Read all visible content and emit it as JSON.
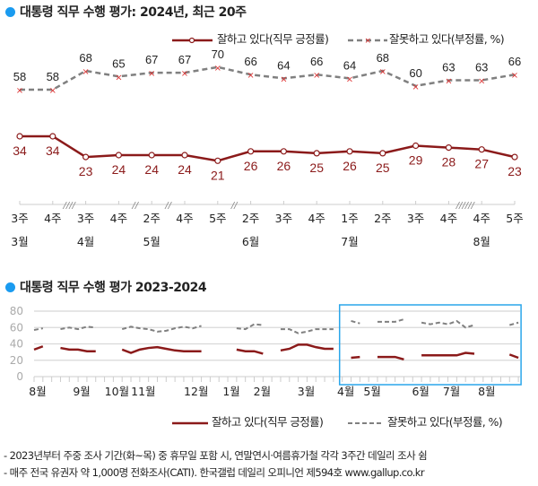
{
  "colors": {
    "positive": "#8b1a1a",
    "negative": "#808080",
    "accent": "#1a9bf0",
    "box": "#2aa6ea"
  },
  "chart_data": [
    {
      "type": "line",
      "title": "대통령 직무 수행 평가: 2024년, 최근 20주",
      "categories": [
        "3주",
        "4주",
        "3주",
        "4주",
        "2주",
        "4주",
        "5주",
        "2주",
        "3주",
        "4주",
        "1주",
        "2주",
        "3주",
        "4주",
        "4주",
        "5주"
      ],
      "months": [
        {
          "label": "3월",
          "at": 0
        },
        {
          "label": "4월",
          "at": 2
        },
        {
          "label": "5월",
          "at": 4
        },
        {
          "label": "6월",
          "at": 7
        },
        {
          "label": "7월",
          "at": 10
        },
        {
          "label": "8월",
          "at": 14
        }
      ],
      "breaks": [
        {
          "after": 1,
          "mark": "////"
        },
        {
          "after": 3,
          "mark": "//"
        },
        {
          "after": 4,
          "mark": "//"
        },
        {
          "after": 6,
          "mark": "//"
        },
        {
          "after": 13,
          "mark": "//////"
        }
      ],
      "series": [
        {
          "name": "잘하고 있다(직무 긍정률)",
          "style": "solid-circle",
          "values": [
            34,
            34,
            23,
            24,
            24,
            24,
            21,
            26,
            26,
            25,
            26,
            25,
            29,
            28,
            27,
            23
          ]
        },
        {
          "name": "잘못하고 있다(부정률, %)",
          "style": "dashed-x",
          "values": [
            58,
            58,
            68,
            65,
            67,
            67,
            70,
            66,
            64,
            66,
            64,
            68,
            60,
            63,
            63,
            66
          ]
        }
      ]
    },
    {
      "type": "line",
      "title": "대통령 직무 수행 평가 2023-2024",
      "ylim": [
        0,
        80
      ],
      "yticks": [
        0,
        20,
        40,
        60,
        80
      ],
      "grid": true,
      "months": [
        {
          "label": "8월",
          "week": 0
        },
        {
          "label": "9월",
          "week": 5
        },
        {
          "label": "10월",
          "week": 9
        },
        {
          "label": "11월",
          "week": 12
        },
        {
          "label": "12월",
          "week": 18
        },
        {
          "label": "1월",
          "week": 22
        },
        {
          "label": "2월",
          "week": 25.5
        },
        {
          "label": "3월",
          "week": 30.5
        },
        {
          "label": "4월",
          "week": 35
        },
        {
          "label": "5월",
          "week": 38
        },
        {
          "label": "6월",
          "week": 43.5
        },
        {
          "label": "7월",
          "week": 47
        },
        {
          "label": "8월",
          "week": 51
        }
      ],
      "highlight_weeks": [
        35,
        55
      ],
      "series": [
        {
          "name": "잘하고 있다(직무 긍정률)",
          "segments": [
            {
              "start": 0,
              "values": [
                33,
                37
              ]
            },
            {
              "start": 3,
              "values": [
                35,
                33,
                33,
                31,
                31
              ]
            },
            {
              "start": 10,
              "values": [
                33,
                29,
                33,
                35,
                36,
                34,
                32,
                31,
                31,
                31
              ]
            },
            {
              "start": 23,
              "values": [
                33,
                31,
                31,
                28
              ]
            },
            {
              "start": 28,
              "values": [
                32,
                34,
                39,
                39,
                36,
                34,
                34
              ]
            },
            {
              "start": 36,
              "values": [
                23,
                24
              ]
            },
            {
              "start": 39,
              "values": [
                24,
                24,
                24,
                21
              ]
            },
            {
              "start": 44,
              "values": [
                26,
                26,
                26,
                26,
                26,
                29,
                28
              ]
            },
            {
              "start": 54,
              "values": [
                27,
                23
              ]
            }
          ]
        },
        {
          "name": "잘못하고 있다(부정률, %)",
          "segments": [
            {
              "start": 0,
              "values": [
                57,
                59
              ]
            },
            {
              "start": 3,
              "values": [
                58,
                60,
                58,
                61,
                60
              ]
            },
            {
              "start": 10,
              "values": [
                58,
                61,
                59,
                58,
                55,
                56,
                59,
                61,
                59,
                62
              ]
            },
            {
              "start": 23,
              "values": [
                59,
                58,
                64,
                63
              ]
            },
            {
              "start": 28,
              "values": [
                58,
                58,
                53,
                55,
                58,
                58,
                58
              ]
            },
            {
              "start": 36,
              "values": [
                68,
                65
              ]
            },
            {
              "start": 39,
              "values": [
                67,
                67,
                67,
                70
              ]
            },
            {
              "start": 44,
              "values": [
                66,
                64,
                66,
                64,
                68,
                60,
                63
              ]
            },
            {
              "start": 54,
              "values": [
                63,
                66
              ]
            }
          ]
        }
      ]
    }
  ],
  "legend": {
    "positive": "잘하고 있다(직무 긍정률)",
    "negative": "잘못하고 있다(부정률, %)"
  },
  "footnotes": [
    "- 2023년부터 주중 조사 기간(화~목) 중 휴무일 포함 시, 연말연시·여름휴가철 각각 3주간 데일리 조사 쉼",
    "- 매주 전국 유권자 약 1,000명 전화조사(CATI). 한국갤럽 데일리 오피니언 제594호 www.gallup.co.kr"
  ]
}
